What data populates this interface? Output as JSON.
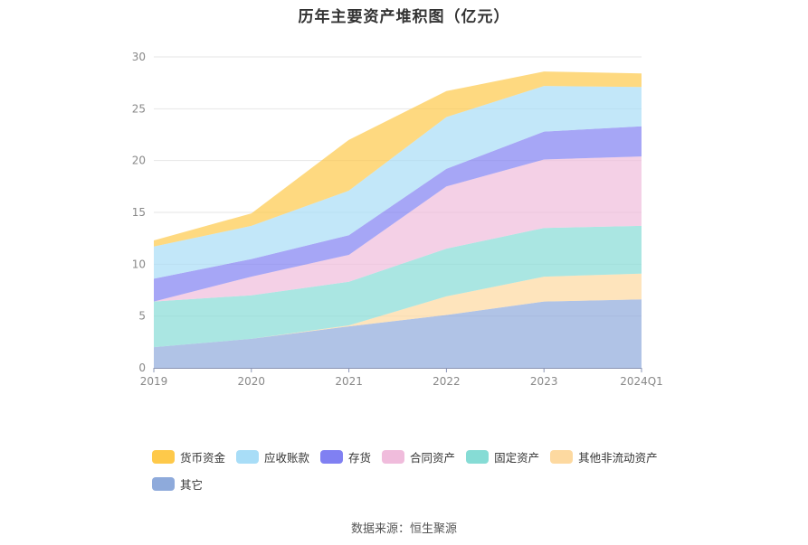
{
  "chart_data": {
    "type": "area",
    "stacked": true,
    "title": "历年主要资产堆积图（亿元）",
    "categories": [
      "2019",
      "2020",
      "2021",
      "2022",
      "2023",
      "2024Q1"
    ],
    "ylim": [
      0,
      30
    ],
    "yticks": [
      0,
      5,
      10,
      15,
      20,
      25,
      30
    ],
    "grid": true,
    "legend_position": "bottom",
    "series": [
      {
        "name": "其它",
        "color": "#8eaadb",
        "values": [
          2.0,
          2.8,
          4.0,
          5.1,
          6.4,
          6.6
        ]
      },
      {
        "name": "其他非流动资产",
        "color": "#fdd9a0",
        "values": [
          0.0,
          0.0,
          0.1,
          1.8,
          2.4,
          2.5
        ]
      },
      {
        "name": "固定资产",
        "color": "#86dcd5",
        "values": [
          4.4,
          4.2,
          4.2,
          4.6,
          4.7,
          4.6
        ]
      },
      {
        "name": "合同资产",
        "color": "#f0bcdc",
        "values": [
          0.0,
          1.8,
          2.6,
          6.0,
          6.6,
          6.7
        ]
      },
      {
        "name": "存货",
        "color": "#8080f2",
        "values": [
          2.2,
          1.7,
          1.9,
          1.7,
          2.7,
          2.9
        ]
      },
      {
        "name": "应收账款",
        "color": "#a8ddf7",
        "values": [
          3.1,
          3.2,
          4.3,
          5.0,
          4.4,
          3.8
        ]
      },
      {
        "name": "货币资金",
        "color": "#fec94a",
        "values": [
          0.6,
          1.2,
          4.9,
          2.5,
          1.4,
          1.3
        ]
      }
    ],
    "legend_order": [
      "货币资金",
      "应收账款",
      "存货",
      "合同资产",
      "固定资产",
      "其他非流动资产",
      "其它"
    ],
    "source": "数据来源：恒生聚源"
  }
}
